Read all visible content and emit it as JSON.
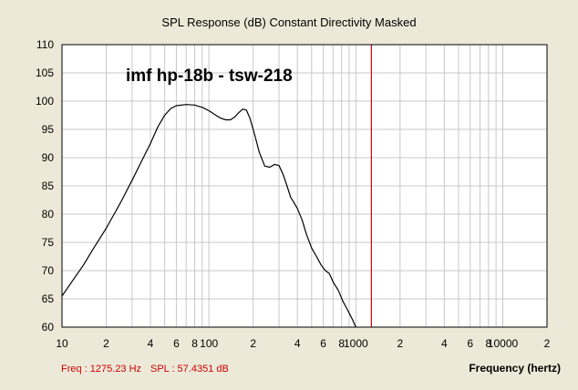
{
  "chart_data": {
    "type": "line",
    "title": "SPL Response (dB)   Constant Directivity   Masked",
    "annotation": "imf hp-18b - tsw-218",
    "xlabel": "Frequency (hertz)",
    "ylabel": "",
    "x_scale": "log",
    "xlim": [
      10,
      20000
    ],
    "ylim": [
      60,
      110
    ],
    "grid": true,
    "y_ticks": [
      "110",
      "105",
      "100",
      "95",
      "90",
      "85",
      "80",
      "75",
      "70",
      "65",
      "60"
    ],
    "x_ticks": [
      {
        "value": 10,
        "label": "10"
      },
      {
        "value": 20,
        "label": "2"
      },
      {
        "value": 40,
        "label": "4"
      },
      {
        "value": 60,
        "label": "6"
      },
      {
        "value": 80,
        "label": "8"
      },
      {
        "value": 100,
        "label": "100"
      },
      {
        "value": 200,
        "label": "2"
      },
      {
        "value": 400,
        "label": "4"
      },
      {
        "value": 600,
        "label": "6"
      },
      {
        "value": 800,
        "label": "8"
      },
      {
        "value": 1000,
        "label": "1000"
      },
      {
        "value": 2000,
        "label": "2"
      },
      {
        "value": 4000,
        "label": "4"
      },
      {
        "value": 6000,
        "label": "6"
      },
      {
        "value": 8000,
        "label": "8"
      },
      {
        "value": 10000,
        "label": "10000"
      },
      {
        "value": 20000,
        "label": "2"
      }
    ],
    "marker_frequency": 1275.23,
    "series": [
      {
        "color": "#000000",
        "x": [
          10,
          12,
          14,
          16,
          20,
          25,
          30,
          35,
          40,
          45,
          50,
          55,
          60,
          70,
          80,
          90,
          100,
          110,
          120,
          130,
          140,
          150,
          160,
          170,
          180,
          190,
          200,
          210,
          220,
          240,
          260,
          280,
          300,
          320,
          340,
          360,
          380,
          400,
          430,
          460,
          500,
          540,
          580,
          620,
          660,
          700,
          760,
          820,
          880,
          950,
          1000
        ],
        "y": [
          65.5,
          68.5,
          71,
          73.5,
          77.5,
          82,
          86,
          89.5,
          92.5,
          95.5,
          97.5,
          98.7,
          99.2,
          99.4,
          99.3,
          98.9,
          98.3,
          97.6,
          97,
          96.7,
          96.7,
          97.2,
          98,
          98.6,
          98.4,
          97,
          95,
          93,
          91,
          88.5,
          88.3,
          88.8,
          88.6,
          87,
          85,
          83,
          82,
          81,
          79,
          76.5,
          74,
          72.5,
          71,
          70,
          69.5,
          68,
          66.5,
          64.5,
          63,
          61.3,
          60
        ]
      }
    ]
  },
  "status": {
    "freq_text": "Freq : 1275.23 Hz",
    "spl_text": "SPL : 57.4351 dB"
  },
  "colors": {
    "background": "#ECE9D8",
    "plot_background": "#FFFFFF",
    "grid": "#C8C8C8",
    "curve": "#000000",
    "marker": "#CC0000",
    "status_text": "#CC0000"
  }
}
